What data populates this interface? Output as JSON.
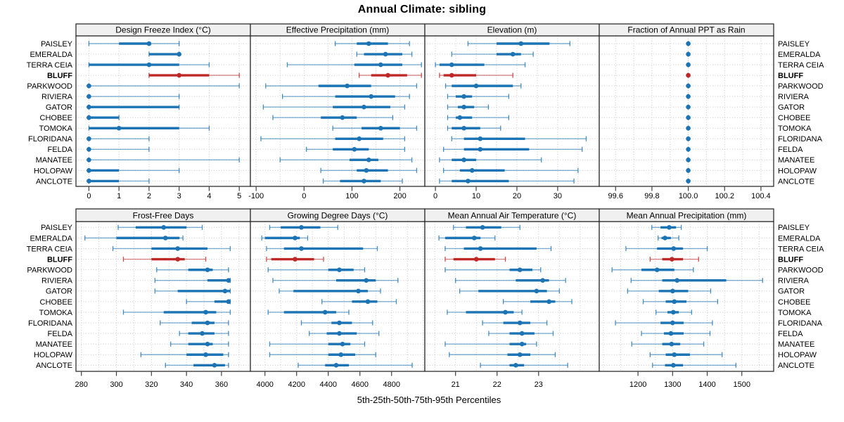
{
  "figure": {
    "title": "Annual Climate: sibling",
    "caption": "5th-25th-50th-75th-95th Percentiles"
  },
  "colors": {
    "series_blue": "#1C74B4",
    "highlight_red": "#BE2826",
    "strip_bg": "#F0F0F0",
    "panel_border": "#1F1F1F",
    "grid": "#C7C7C7",
    "tick": "#404040",
    "text": "#000000"
  },
  "chart_data": {
    "type": "dot-interval (percentile whisker plot, lattice style, 2x4 panels)",
    "percentiles": [
      5,
      25,
      50,
      75,
      95
    ],
    "sites": [
      "PAISLEY",
      "EMERALDA",
      "TERRA CEIA",
      "BLUFF",
      "PARKWOOD",
      "RIVIERA",
      "GATOR",
      "CHOBEE",
      "TOMOKA",
      "FLORIDANA",
      "FELDA",
      "MANATEE",
      "HOLOPAW",
      "ANCLOTE"
    ],
    "highlight_site": "BLUFF",
    "legend": "thin line = 5th-95th, thick line = 25th-75th, dot = 50th percentile; BLUFF row drawn in red",
    "panels": [
      {
        "title": "Design Freeze Index (°C)",
        "domain": [
          -0.43,
          5.37
        ],
        "grid_step": 1,
        "tick_values": [
          0,
          1,
          2,
          3,
          4,
          5
        ],
        "tick_labels": [
          "0",
          "1",
          "2",
          "3",
          "4",
          "5"
        ],
        "series": [
          [
            0,
            1,
            2,
            2,
            3
          ],
          [
            2,
            2,
            3,
            3,
            3
          ],
          [
            0,
            0,
            2,
            3,
            4
          ],
          [
            2,
            2,
            3,
            4,
            5
          ],
          [
            0,
            0,
            0,
            0,
            5
          ],
          [
            0,
            0,
            0,
            0,
            3
          ],
          [
            0,
            0,
            0,
            3,
            3
          ],
          [
            0,
            0,
            0,
            1,
            1
          ],
          [
            0,
            0,
            1,
            3,
            4
          ],
          [
            0,
            0,
            0,
            0,
            2
          ],
          [
            0,
            0,
            0,
            0,
            2
          ],
          [
            0,
            0,
            0,
            0,
            5
          ],
          [
            0,
            0,
            0,
            1,
            3
          ],
          [
            0,
            0,
            0,
            1,
            2
          ]
        ]
      },
      {
        "title": "Effective Precipitation (mm)",
        "domain": [
          -112,
          252
        ],
        "grid_step": 50,
        "tick_values": [
          -100,
          0,
          100,
          200
        ],
        "tick_labels": [
          "-100",
          "0",
          "100",
          "200"
        ],
        "series": [
          [
            65,
            110,
            135,
            175,
            220
          ],
          [
            110,
            125,
            170,
            205,
            225
          ],
          [
            -35,
            105,
            160,
            205,
            245
          ],
          [
            115,
            140,
            175,
            215,
            245
          ],
          [
            -80,
            30,
            90,
            140,
            235
          ],
          [
            -45,
            65,
            140,
            190,
            220
          ],
          [
            -85,
            60,
            125,
            180,
            210
          ],
          [
            -65,
            35,
            80,
            110,
            185
          ],
          [
            60,
            120,
            160,
            200,
            235
          ],
          [
            -90,
            65,
            115,
            165,
            210
          ],
          [
            5,
            60,
            105,
            135,
            210
          ],
          [
            -50,
            95,
            135,
            155,
            225
          ],
          [
            35,
            110,
            130,
            175,
            235
          ],
          [
            40,
            75,
            125,
            160,
            205
          ]
        ]
      },
      {
        "title": "Elevation (m)",
        "domain": [
          -2.6,
          40.2
        ],
        "grid_step": 5,
        "tick_values": [
          0,
          10,
          20,
          30
        ],
        "tick_labels": [
          "0",
          "10",
          "20",
          "30"
        ],
        "series": [
          [
            8,
            15,
            21,
            28,
            33
          ],
          [
            4,
            15,
            19,
            21,
            24
          ],
          [
            0,
            1,
            4,
            12,
            22
          ],
          [
            1,
            2,
            4,
            10,
            19
          ],
          [
            2.5,
            4,
            10,
            19,
            21
          ],
          [
            3,
            5,
            7,
            9,
            18
          ],
          [
            3,
            5.5,
            7,
            9.5,
            13
          ],
          [
            3,
            5,
            6,
            9,
            18
          ],
          [
            3,
            4,
            7,
            11,
            16
          ],
          [
            4,
            7,
            11,
            22,
            37
          ],
          [
            2,
            7,
            11,
            23,
            36
          ],
          [
            1,
            4,
            7,
            10,
            26
          ],
          [
            2,
            6,
            9,
            17,
            35
          ],
          [
            1,
            4,
            8,
            18,
            34
          ]
        ]
      },
      {
        "title": "Fraction of Annual PPT as Rain",
        "domain": [
          99.51,
          100.47
        ],
        "grid_step": 0.1,
        "tick_values": [
          99.6,
          99.8,
          100.0,
          100.2,
          100.4
        ],
        "tick_labels": [
          "99.6",
          "99.8",
          "100.0",
          "100.2",
          "100.4"
        ],
        "series": [
          [
            100,
            100,
            100,
            100,
            100
          ],
          [
            100,
            100,
            100,
            100,
            100
          ],
          [
            100,
            100,
            100,
            100,
            100
          ],
          [
            100,
            100,
            100,
            100,
            100
          ],
          [
            100,
            100,
            100,
            100,
            100
          ],
          [
            100,
            100,
            100,
            100,
            100
          ],
          [
            100,
            100,
            100,
            100,
            100
          ],
          [
            100,
            100,
            100,
            100,
            100
          ],
          [
            100,
            100,
            100,
            100,
            100
          ],
          [
            100,
            100,
            100,
            100,
            100
          ],
          [
            100,
            100,
            100,
            100,
            100
          ],
          [
            100,
            100,
            100,
            100,
            100
          ],
          [
            100,
            100,
            100,
            100,
            100
          ],
          [
            100,
            100,
            100,
            100,
            100
          ]
        ]
      },
      {
        "title": "Frost-Free Days",
        "domain": [
          276.9,
          376.5
        ],
        "grid_step": 10,
        "tick_values": [
          280,
          300,
          320,
          340,
          360
        ],
        "tick_labels": [
          "280",
          "300",
          "320",
          "340",
          "360"
        ],
        "series": [
          [
            301,
            311,
            327,
            340,
            349
          ],
          [
            282,
            300,
            328,
            336,
            338
          ],
          [
            298,
            320,
            335,
            352,
            365
          ],
          [
            304,
            320,
            335,
            339,
            351
          ],
          [
            323,
            341,
            352,
            355,
            364
          ],
          [
            322,
            352,
            364,
            365,
            365
          ],
          [
            322,
            335,
            362,
            365,
            365
          ],
          [
            340,
            356,
            364,
            365,
            365
          ],
          [
            304,
            327,
            351,
            357,
            365
          ],
          [
            325,
            343,
            352,
            356,
            364
          ],
          [
            336,
            341,
            349,
            356,
            364
          ],
          [
            331,
            341,
            352,
            355,
            364
          ],
          [
            314,
            340,
            351,
            361,
            364
          ],
          [
            328,
            344,
            356,
            362,
            364
          ]
        ]
      },
      {
        "title": "Growing Degree Days (°C)",
        "domain": [
          3908,
          5010
        ],
        "grid_step": 100,
        "tick_values": [
          4000,
          4200,
          4400,
          4600,
          4800
        ],
        "tick_labels": [
          "4000",
          "4200",
          "4400",
          "4600",
          "4800"
        ],
        "series": [
          [
            4030,
            4100,
            4230,
            4350,
            4460
          ],
          [
            3980,
            4000,
            4190,
            4220,
            4270
          ],
          [
            4010,
            4120,
            4230,
            4620,
            4710
          ],
          [
            4010,
            4040,
            4190,
            4310,
            4370
          ],
          [
            4020,
            4400,
            4470,
            4560,
            4630
          ],
          [
            4050,
            4450,
            4640,
            4700,
            4840
          ],
          [
            4090,
            4180,
            4590,
            4650,
            4730
          ],
          [
            4360,
            4550,
            4650,
            4710,
            4830
          ],
          [
            4020,
            4120,
            4380,
            4450,
            4530
          ],
          [
            4230,
            4420,
            4470,
            4550,
            4680
          ],
          [
            4280,
            4390,
            4470,
            4580,
            4720
          ],
          [
            4030,
            4400,
            4490,
            4540,
            4630
          ],
          [
            4030,
            4400,
            4480,
            4570,
            4700
          ],
          [
            4210,
            4380,
            4450,
            4530,
            4930
          ]
        ]
      },
      {
        "title": "Mean Annual Air Temperature (°C)",
        "domain": [
          20.26,
          24.46
        ],
        "grid_step": 0.5,
        "tick_values": [
          21,
          22,
          23
        ],
        "tick_labels": [
          "21",
          "22",
          "23"
        ],
        "series": [
          [
            20.95,
            21.25,
            21.65,
            22.1,
            22.55
          ],
          [
            20.6,
            20.75,
            21.45,
            21.6,
            21.95
          ],
          [
            20.75,
            21.2,
            21.6,
            22.95,
            23.3
          ],
          [
            20.75,
            20.95,
            21.5,
            21.95,
            22.2
          ],
          [
            20.75,
            22.3,
            22.55,
            22.85,
            23.05
          ],
          [
            21.0,
            22.45,
            23.1,
            23.25,
            23.65
          ],
          [
            21.1,
            21.55,
            22.95,
            23.2,
            23.5
          ],
          [
            22.15,
            22.8,
            23.25,
            23.4,
            23.8
          ],
          [
            20.8,
            21.25,
            22.2,
            22.4,
            22.6
          ],
          [
            21.65,
            22.15,
            22.55,
            22.8,
            23.2
          ],
          [
            21.8,
            22.3,
            22.6,
            22.9,
            23.35
          ],
          [
            20.75,
            22.3,
            22.6,
            22.7,
            22.95
          ],
          [
            20.85,
            22.25,
            22.55,
            22.8,
            23.4
          ],
          [
            21.6,
            22.3,
            22.45,
            22.65,
            23.7
          ]
        ]
      },
      {
        "title": "Mean Annual Precipitation (mm)",
        "domain": [
          1088,
          1592
        ],
        "grid_step": 50,
        "tick_values": [
          1200,
          1300,
          1400,
          1500
        ],
        "tick_labels": [
          "1200",
          "1300",
          "1400",
          "1500"
        ],
        "series": [
          [
            1240,
            1265,
            1290,
            1310,
            1325
          ],
          [
            1258,
            1268,
            1278,
            1295,
            1318
          ],
          [
            1165,
            1255,
            1303,
            1330,
            1400
          ],
          [
            1235,
            1270,
            1298,
            1330,
            1375
          ],
          [
            1125,
            1210,
            1255,
            1305,
            1360
          ],
          [
            1180,
            1270,
            1313,
            1455,
            1560
          ],
          [
            1170,
            1260,
            1300,
            1345,
            1410
          ],
          [
            1215,
            1280,
            1305,
            1340,
            1430
          ],
          [
            1252,
            1285,
            1302,
            1318,
            1355
          ],
          [
            1135,
            1265,
            1300,
            1332,
            1415
          ],
          [
            1210,
            1275,
            1295,
            1332,
            1408
          ],
          [
            1182,
            1270,
            1297,
            1322,
            1390
          ],
          [
            1235,
            1280,
            1305,
            1350,
            1443
          ],
          [
            1242,
            1278,
            1302,
            1330,
            1483
          ]
        ]
      }
    ]
  }
}
